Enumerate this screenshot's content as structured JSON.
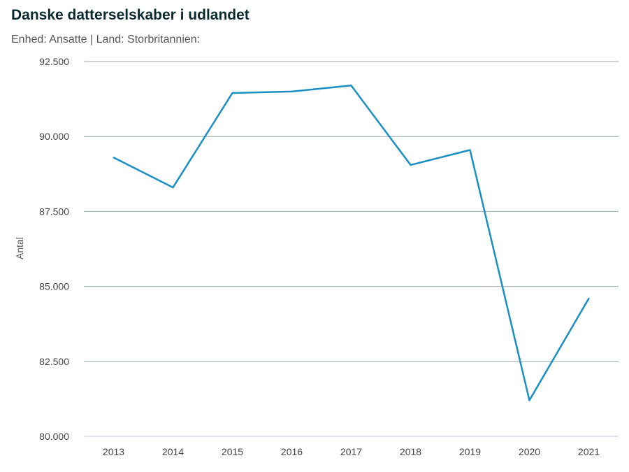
{
  "chart_data": {
    "type": "line",
    "title": "Danske datterselskaber i udlandet",
    "subtitle": "Enhed: Ansatte | Land: Storbritannien:",
    "xlabel": "",
    "ylabel": "Antal",
    "categories": [
      "2013",
      "2014",
      "2015",
      "2016",
      "2017",
      "2018",
      "2019",
      "2020",
      "2021"
    ],
    "series": [
      {
        "values": [
          89300,
          88300,
          91450,
          91500,
          91700,
          89050,
          89550,
          81200,
          84600
        ]
      }
    ],
    "ylim": [
      80000,
      92500
    ],
    "yticks": [
      80000,
      82500,
      85000,
      87500,
      90000,
      92500
    ],
    "ytick_labels": [
      "80.000",
      "82.500",
      "85.000",
      "87.500",
      "90.000",
      "92.500"
    ],
    "grid": true,
    "line_color": "#1a8fc4"
  }
}
